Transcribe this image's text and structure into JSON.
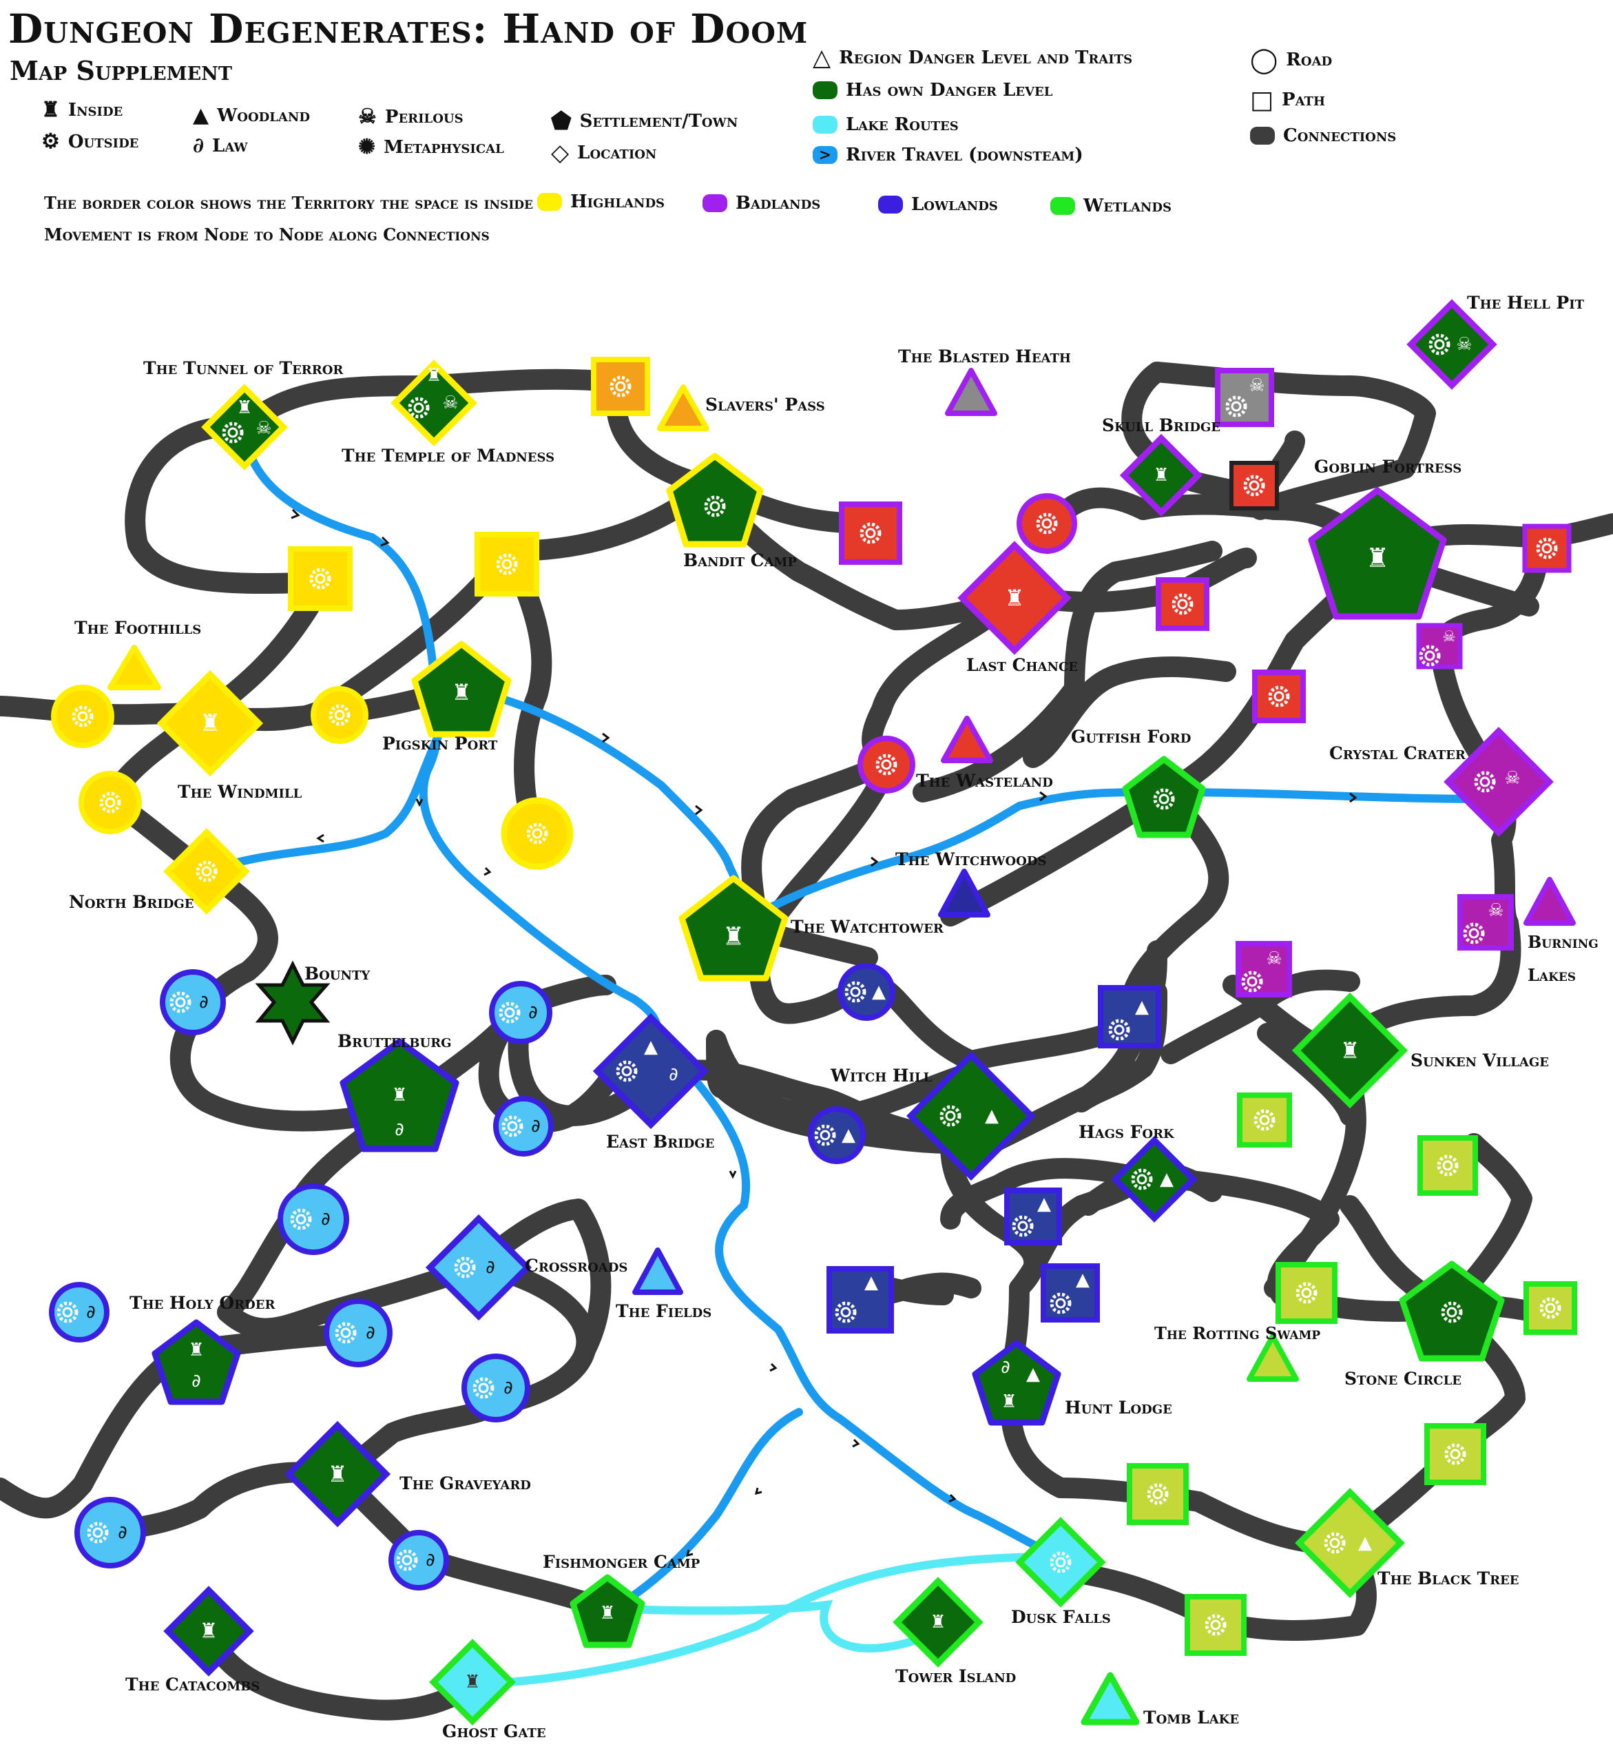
{
  "header": {
    "title": "Dungeon Degenerates: Hand of Doom",
    "subtitle": "Map Supplement"
  },
  "legend": {
    "inside": "Inside",
    "outside": "Outside",
    "woodland": "Woodland",
    "law": "Law",
    "perilous": "Perilous",
    "metaphysical": "Metaphysical",
    "settlement": "Settlement/Town",
    "location": "Location",
    "region": "Region Danger Level and Traits",
    "own_danger": "Has own Danger Level",
    "lake_routes": "Lake Routes",
    "river_travel": "River Travel (downsteam)",
    "road": "Road",
    "path": "Path",
    "connections": "Connections",
    "border_note": "The border color shows the Territory the space is inside",
    "movement_note": "Movement is from Node to Node along Connections",
    "territories": [
      {
        "name": "Highlands",
        "color": "#ffef00"
      },
      {
        "name": "Badlands",
        "color": "#a020f0"
      },
      {
        "name": "Lowlands",
        "color": "#3a1fe0"
      },
      {
        "name": "Wetlands",
        "color": "#22e822"
      }
    ]
  },
  "colors": {
    "connection": "#3d3d3d",
    "river": "#1a9bef",
    "lake": "#55eaf5",
    "own_danger": "#0b6a0b"
  },
  "places": {
    "tunnel_of_terror": "The Tunnel of Terror",
    "temple_of_madness": "The Temple of Madness",
    "slavers_pass": "Slavers' Pass",
    "bandit_camp": "Bandit Camp",
    "blasted_heath": "The Blasted Heath",
    "skull_bridge": "Skull Bridge",
    "hell_pit": "The Hell Pit",
    "goblin_fortress": "Goblin Fortress",
    "last_chance": "Last Chance",
    "foothills": "The Foothills",
    "windmill": "The Windmill",
    "pigskin_port": "Pigskin Port",
    "gutfish_ford": "Gutfish Ford",
    "crystal_crater": "Crystal Crater",
    "wasteland": "The Wasteland",
    "witchwoods": "The Witchwoods",
    "north_bridge": "North Bridge",
    "watchtower": "The Watchtower",
    "burning_lakes": "Burning Lakes",
    "bounty": "Bounty",
    "bruttelburg": "Bruttelburg",
    "witch_hill": "Witch Hill",
    "sunken_village": "Sunken Village",
    "east_bridge": "East Bridge",
    "hags_fork": "Hags Fork",
    "crossroads": "Crossroads",
    "the_fields": "The Fields",
    "holy_order": "The Holy Order",
    "rotting_swamp": "The Rotting Swamp",
    "stone_circle": "Stone Circle",
    "hunt_lodge": "Hunt Lodge",
    "graveyard": "The Graveyard",
    "fishmonger_camp": "Fishmonger Camp",
    "dusk_falls": "Dusk Falls",
    "black_tree": "The Black Tree",
    "catacombs": "The Catacombs",
    "tower_island": "Tower Island",
    "ghost_gate": "Ghost Gate",
    "tomb_lake": "Tomb Lake"
  }
}
